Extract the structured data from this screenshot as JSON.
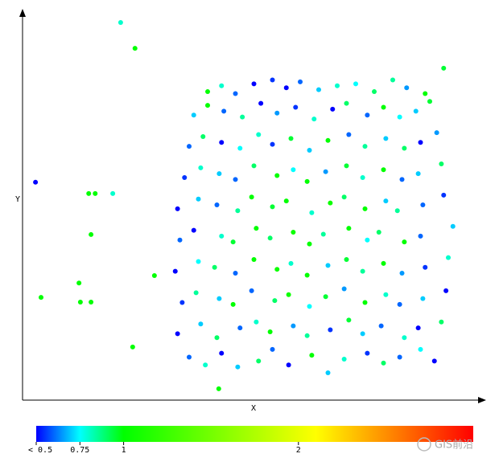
{
  "chart_data": {
    "type": "scatter",
    "xlabel": "X",
    "ylabel": "Y",
    "xlim": [
      0,
      100
    ],
    "ylim": [
      0,
      100
    ],
    "x": [
      36,
      39.5,
      43,
      46.5,
      51,
      54,
      57.5,
      62.5,
      66,
      69.5,
      74.5,
      78,
      81.5,
      86,
      89,
      33.5,
      38.5,
      42,
      47,
      50.5,
      53.5,
      58.5,
      61.5,
      66.5,
      70.5,
      73.5,
      77.5,
      82.5,
      85.5,
      90.5,
      34.5,
      37.5,
      42.5,
      45.5,
      49.5,
      54.5,
      57.5,
      62,
      65.5,
      69.5,
      74,
      78.5,
      81.5,
      86.5,
      91.5,
      33,
      38,
      41.5,
      46,
      50,
      55,
      58,
      61.5,
      66,
      70,
      73.5,
      78,
      82,
      87,
      92,
      34,
      37,
      43,
      45.5,
      50.5,
      53.5,
      58.5,
      62,
      65,
      70.5,
      74.5,
      77,
      82.5,
      86,
      93,
      33.5,
      38,
      42,
      46.5,
      49.5,
      54,
      57,
      62.5,
      66.5,
      69.5,
      74,
      78.5,
      81,
      86.5,
      91,
      35,
      38.5,
      42.5,
      46,
      50,
      55,
      58.5,
      61.5,
      65.5,
      70,
      73.5,
      78,
      82,
      85.5,
      90.5,
      36,
      39,
      43,
      47,
      51,
      54,
      58,
      62,
      66,
      70.5,
      74,
      78.5,
      82.5,
      86,
      89.5,
      37,
      40,
      43.5,
      47.5,
      51.5,
      55,
      59,
      63,
      67,
      70,
      74.5,
      78,
      81.5,
      85,
      88,
      40,
      43,
      46,
      50,
      54,
      57,
      60,
      64,
      68,
      72,
      76,
      80,
      83,
      87,
      91,
      21.2,
      24.3,
      2.8,
      14.3,
      15.7,
      19.5,
      14.8,
      4,
      12.2,
      12.5,
      14.8,
      23.8,
      42.4,
      28.5
    ],
    "values": [
      11,
      9,
      12,
      8.5,
      10,
      13,
      9,
      11.5,
      7,
      10.5,
      12,
      9.5,
      11,
      13,
      10,
      17,
      19.5,
      16,
      18.5,
      20,
      17.5,
      19,
      16.5,
      18,
      20.5,
      17,
      19,
      16,
      18.5,
      20,
      25,
      27.5,
      26,
      24.5,
      28,
      25.5,
      27,
      24,
      26.5,
      28.5,
      25,
      27,
      24.5,
      26,
      28,
      33,
      35.5,
      34,
      32.5,
      36,
      33.5,
      35,
      32,
      34.5,
      36,
      33,
      35,
      32.5,
      34,
      36.5,
      41,
      43.5,
      42,
      40.5,
      44,
      41.5,
      43,
      40,
      42.5,
      44,
      41,
      43,
      40.5,
      42,
      44.5,
      49,
      51.5,
      50,
      48.5,
      52,
      49.5,
      51,
      48,
      50.5,
      52,
      49,
      51,
      48.5,
      50,
      52.5,
      57,
      59.5,
      58,
      56.5,
      60,
      57.5,
      59,
      56,
      58.5,
      60,
      57,
      59,
      56.5,
      58,
      60.5,
      65,
      67.5,
      66,
      64.5,
      68,
      65.5,
      67,
      64,
      66.5,
      68,
      65,
      67,
      64.5,
      66,
      68.5,
      73,
      75.5,
      74,
      72.5,
      76,
      73.5,
      75,
      72,
      74.5,
      76,
      73,
      75,
      72.5,
      74,
      76.5,
      79,
      80.5,
      78.5,
      81,
      82,
      80,
      81.5,
      79.5,
      80.5,
      81,
      79,
      82,
      80,
      78.5,
      85,
      96.7,
      90.1,
      55.8,
      52.9,
      52.9,
      52.9,
      42.4,
      26.3,
      30,
      25.1,
      25.1,
      13.6,
      2.9,
      31.9
    ],
    "color_values": [
      0.6,
      0.8,
      0.5,
      0.7,
      0.9,
      0.6,
      0.5,
      1.0,
      0.7,
      0.8,
      0.55,
      0.9,
      0.6,
      0.75,
      0.5,
      0.5,
      0.7,
      0.9,
      0.6,
      0.8,
      1.0,
      0.65,
      0.85,
      0.55,
      0.95,
      0.7,
      0.6,
      0.8,
      0.5,
      0.9,
      0.55,
      0.85,
      0.7,
      1.0,
      0.6,
      0.9,
      1.05,
      0.75,
      0.95,
      0.65,
      1.0,
      0.8,
      0.6,
      0.7,
      0.5,
      0.5,
      0.75,
      0.9,
      0.6,
      1.0,
      1.05,
      0.8,
      1.0,
      0.7,
      0.95,
      0.85,
      1.0,
      0.65,
      0.55,
      0.8,
      0.6,
      0.5,
      0.8,
      0.95,
      1.0,
      0.9,
      1.05,
      1.0,
      0.85,
      1.0,
      0.75,
      0.9,
      1.0,
      0.6,
      0.7,
      0.5,
      0.7,
      0.6,
      0.85,
      1.0,
      0.95,
      1.0,
      0.8,
      1.05,
      0.9,
      1.0,
      0.7,
      0.85,
      0.6,
      0.55,
      0.55,
      0.8,
      0.7,
      0.6,
      0.9,
      1.0,
      0.75,
      1.0,
      0.65,
      0.95,
      0.8,
      1.0,
      0.6,
      0.7,
      0.9,
      0.6,
      0.9,
      0.5,
      0.75,
      0.8,
      0.55,
      0.95,
      0.7,
      1.0,
      0.6,
      0.85,
      0.7,
      0.9,
      0.5,
      0.65,
      0.7,
      1.0,
      0.6,
      0.85,
      0.5,
      0.65,
      0.55,
      0.8,
      0.5,
      0.9,
      0.6,
      1.0,
      0.75,
      0.7,
      0.95,
      1.0,
      0.8,
      0.6,
      0.5,
      0.55,
      0.5,
      0.6,
      0.7,
      0.8,
      0.75,
      0.9,
      0.85,
      0.65,
      1.0,
      0.95,
      0.8,
      1.0,
      0.5,
      1.0,
      1.0,
      0.8,
      1.0,
      1.0,
      1.0,
      1.0,
      1.0,
      1.0,
      1.0,
      1.0
    ],
    "clim": [
      0.5,
      3
    ],
    "colorscale": [
      [
        0.5,
        "#0000ff"
      ],
      [
        0.75,
        "#00ffff"
      ],
      [
        1,
        "#00ff00"
      ],
      [
        2.1,
        "#ffff00"
      ],
      [
        3,
        "#ff0000"
      ]
    ],
    "cticks": [
      {
        "value": 0.5,
        "label": "< 0.5"
      },
      0.75,
      1,
      2
    ],
    "watermark": "GIS前沿"
  }
}
